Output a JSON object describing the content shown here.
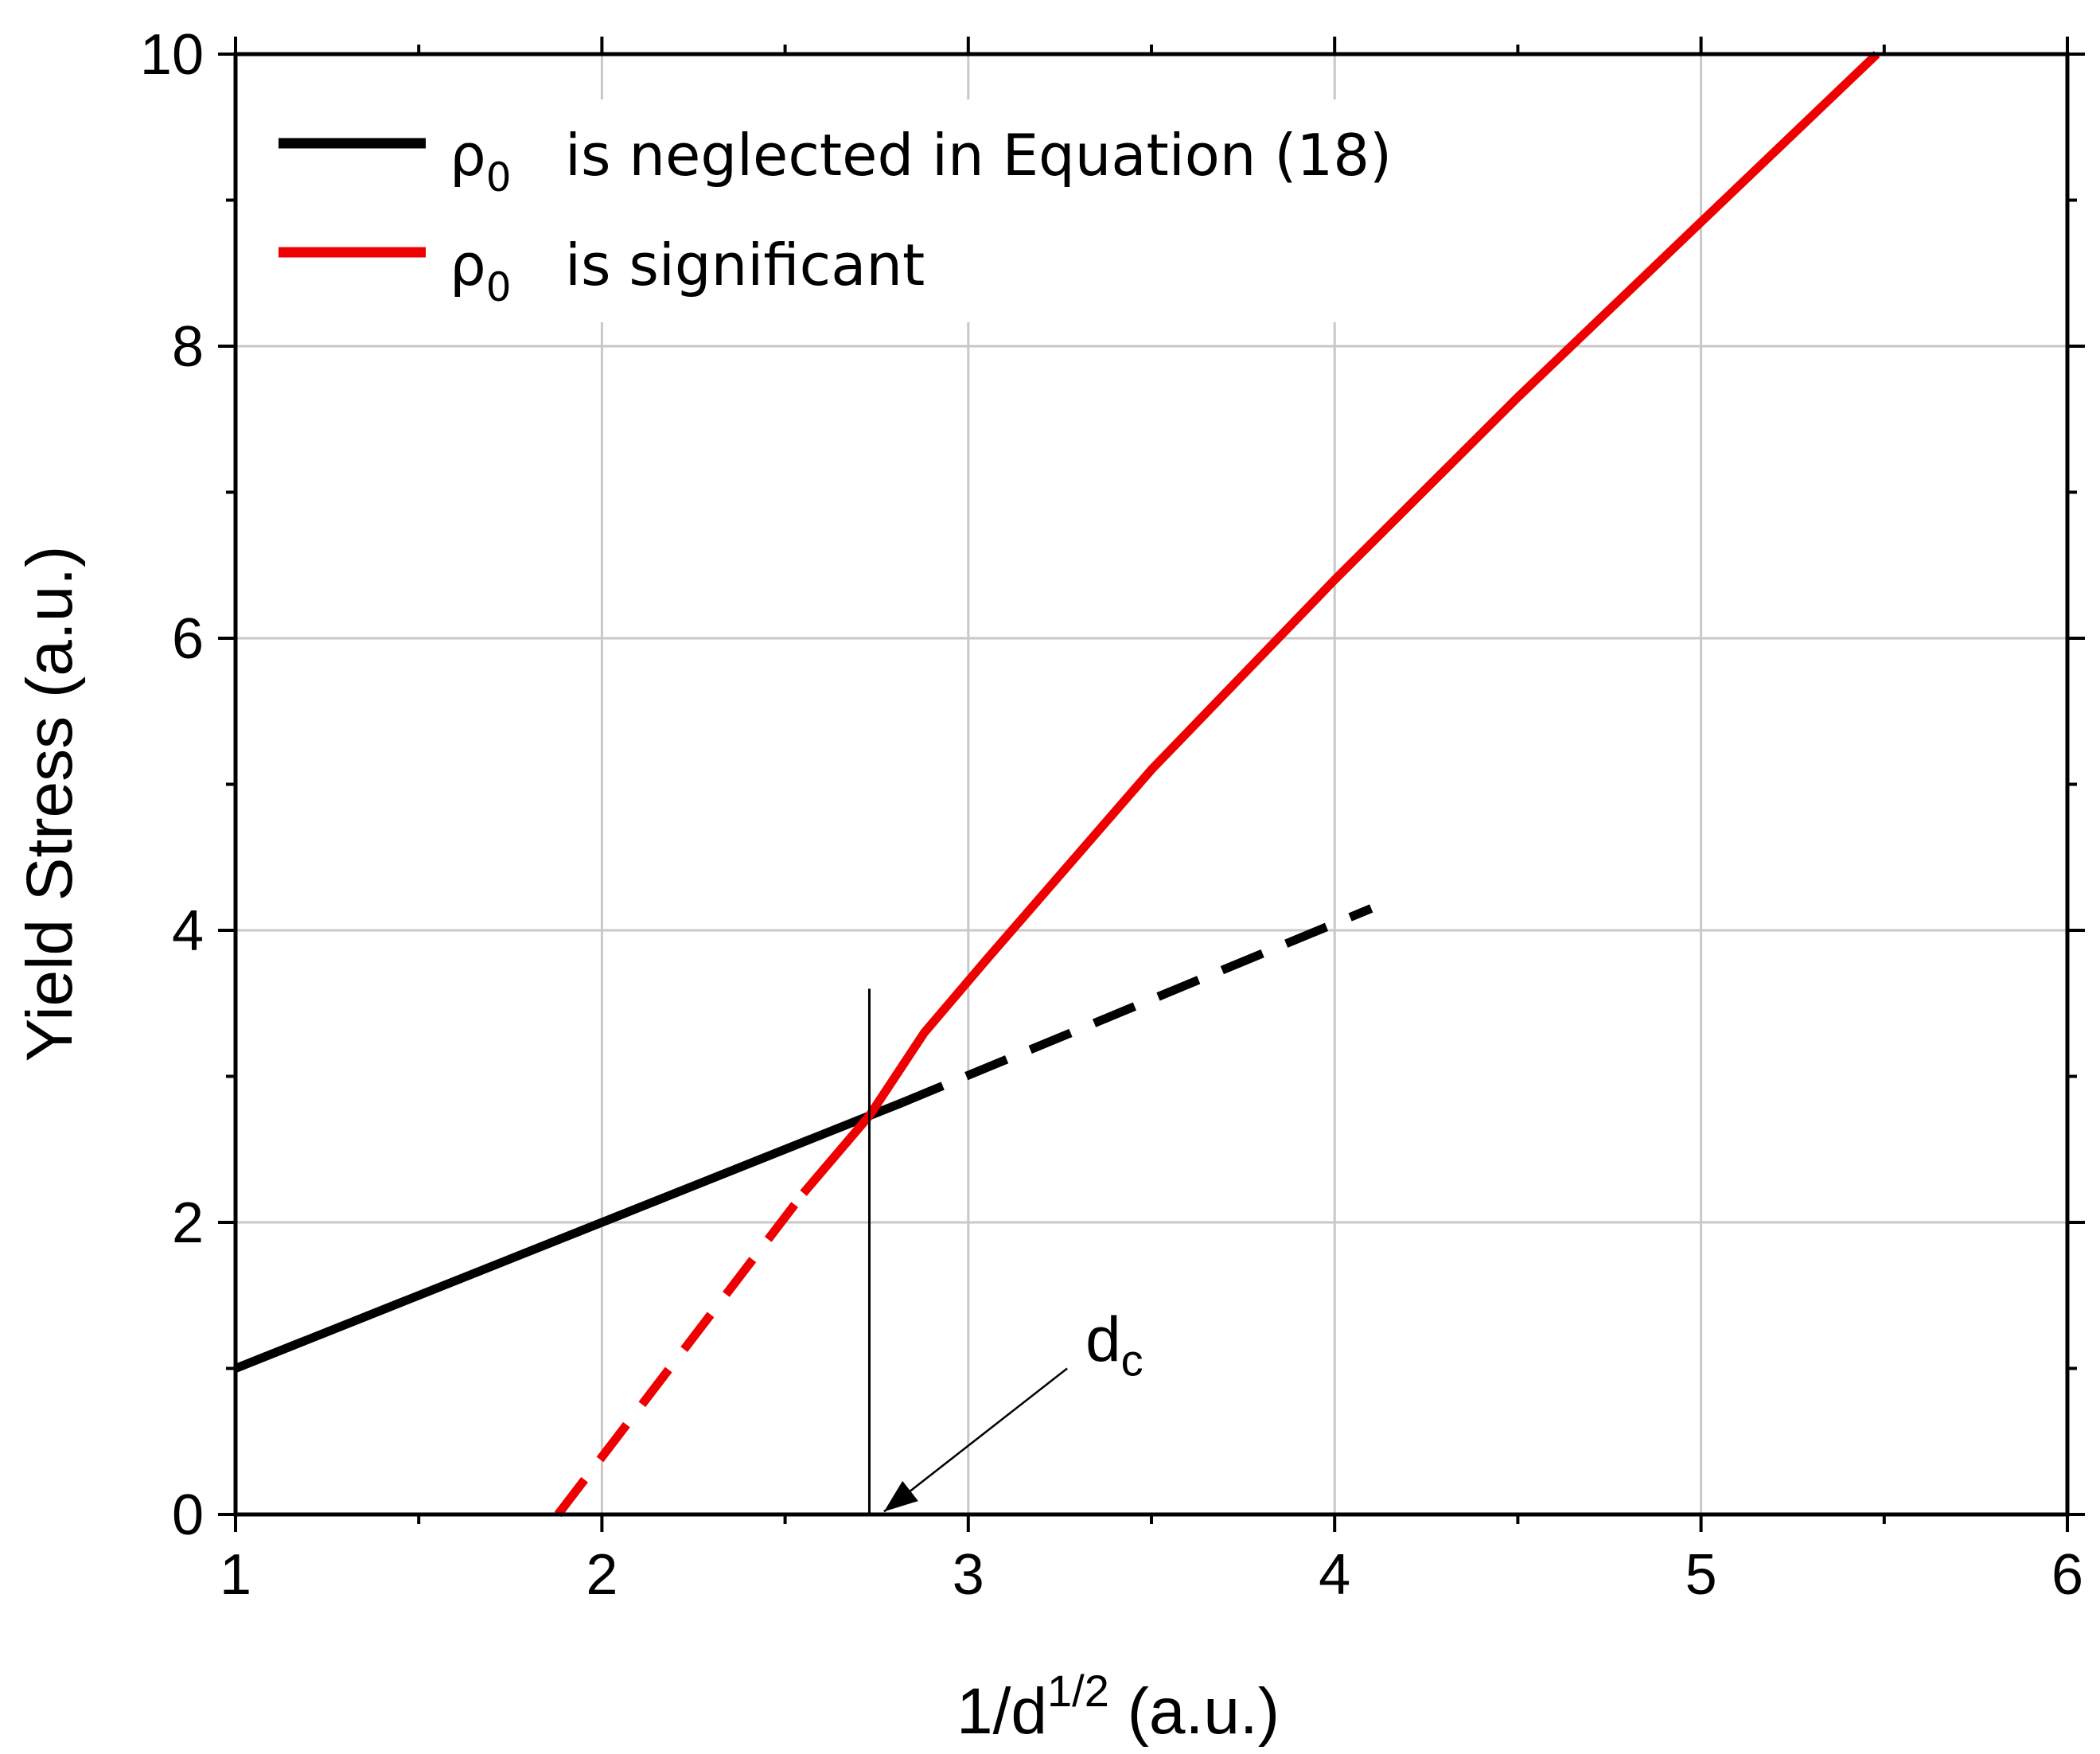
{
  "chart_data": {
    "type": "line",
    "title": "",
    "xlabel": {
      "base": "1/d",
      "sup": "1/2",
      "rest": " (a.u.)"
    },
    "ylabel": "Yield Stress (a.u.)",
    "xlim": [
      1,
      6
    ],
    "ylim": [
      0,
      10
    ],
    "xticks": [
      1,
      2,
      3,
      4,
      5,
      6
    ],
    "yticks": [
      0,
      2,
      4,
      6,
      8,
      10
    ],
    "xtick_labels": [
      "1",
      "2",
      "3",
      "4",
      "5",
      "6"
    ],
    "ytick_labels": [
      "0",
      "2",
      "4",
      "6",
      "8",
      "10"
    ],
    "x_minor_step": 0.5,
    "y_minor_step": 1,
    "grid": true,
    "legend": {
      "placement": "top-left",
      "entries": [
        {
          "symbol": "ρ",
          "subscript": "0",
          "text": "is neglected in Equation (18)",
          "color": "#000000"
        },
        {
          "symbol": "ρ",
          "subscript": "0",
          "text": "is significant",
          "color": "#ee0000"
        }
      ]
    },
    "series": [
      {
        "color": "#000000",
        "style": "solid",
        "x": [
          1.0,
          2.0,
          2.73,
          2.82
        ],
        "y": [
          1.0,
          2.0,
          2.73,
          2.82
        ]
      },
      {
        "color": "#000000",
        "style": "dashed",
        "x": [
          2.82,
          4.1
        ],
        "y": [
          2.82,
          4.15
        ]
      },
      {
        "color": "#ee0000",
        "style": "dashed",
        "x": [
          1.88,
          2.55
        ],
        "y": [
          0.0,
          2.2
        ]
      },
      {
        "color": "#ee0000",
        "style": "solid",
        "x": [
          2.55,
          2.73,
          2.88,
          3.05,
          3.5,
          4.0,
          4.5,
          5.0,
          5.48
        ],
        "y": [
          2.2,
          2.73,
          3.3,
          3.8,
          5.1,
          6.4,
          7.65,
          8.85,
          10.0
        ]
      }
    ],
    "annotations": [
      {
        "label": "d",
        "subscript": "c",
        "vline_x": 2.73,
        "vline_ymax": 3.6,
        "label_x": 3.32,
        "label_y": 1.05,
        "arrow_from": [
          3.27,
          1.0
        ],
        "arrow_to": [
          2.77,
          0.02
        ]
      }
    ]
  }
}
